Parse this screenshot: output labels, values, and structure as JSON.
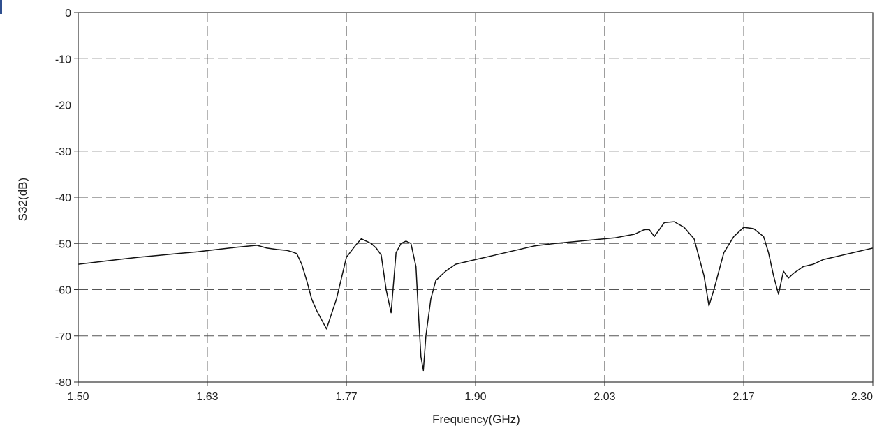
{
  "chart_data": {
    "type": "line",
    "title": "",
    "xlabel": "Frequency(GHz)",
    "ylabel": "S32(dB)",
    "xlim": [
      1.5,
      2.3
    ],
    "ylim": [
      -80,
      0
    ],
    "x_ticks": [
      1.5,
      1.63,
      1.77,
      1.9,
      2.03,
      2.17,
      2.3
    ],
    "x_tick_labels": [
      "1.50",
      "1.63",
      "1.77",
      "1.90",
      "2.03",
      "2.17",
      "2.30"
    ],
    "y_ticks": [
      0,
      -10,
      -20,
      -30,
      -40,
      -50,
      -60,
      -70,
      -80
    ],
    "y_tick_labels": [
      "0",
      "-10",
      "-20",
      "-30",
      "-40",
      "-50",
      "-60",
      "-70",
      "-80"
    ],
    "grid": true,
    "grid_style": "dashed",
    "line_color": "#111111",
    "series": [
      {
        "x": [
          1.5,
          1.52,
          1.54,
          1.56,
          1.58,
          1.6,
          1.62,
          1.64,
          1.66,
          1.67,
          1.68,
          1.69,
          1.7,
          1.71,
          1.715,
          1.72,
          1.725,
          1.73,
          1.735,
          1.74,
          1.75,
          1.76,
          1.77,
          1.78,
          1.785,
          1.79,
          1.795,
          1.8,
          1.805,
          1.81,
          1.815,
          1.82,
          1.825,
          1.83,
          1.835,
          1.84,
          1.8425,
          1.845,
          1.8475,
          1.85,
          1.855,
          1.86,
          1.87,
          1.88,
          1.9,
          1.92,
          1.94,
          1.96,
          1.98,
          2.0,
          2.02,
          2.04,
          2.06,
          2.065,
          2.07,
          2.075,
          2.08,
          2.085,
          2.09,
          2.1,
          2.11,
          2.12,
          2.125,
          2.13,
          2.135,
          2.14,
          2.15,
          2.16,
          2.17,
          2.18,
          2.19,
          2.195,
          2.2,
          2.205,
          2.21,
          2.215,
          2.22,
          2.23,
          2.24,
          2.25,
          2.26,
          2.27,
          2.28,
          2.29,
          2.3
        ],
        "y": [
          -54.5,
          -54.0,
          -53.5,
          -53.0,
          -52.6,
          -52.2,
          -51.8,
          -51.3,
          -50.8,
          -50.6,
          -50.4,
          -51.0,
          -51.3,
          -51.5,
          -51.8,
          -52.2,
          -54.5,
          -58.0,
          -62.0,
          -64.5,
          -68.5,
          -62.0,
          -53.0,
          -50.2,
          -49.0,
          -49.5,
          -50.0,
          -51.0,
          -52.5,
          -60.0,
          -65.0,
          -52.0,
          -50.0,
          -49.5,
          -50.0,
          -55.0,
          -65.0,
          -74.5,
          -77.5,
          -70.0,
          -62.0,
          -58.0,
          -56.0,
          -54.5,
          -53.5,
          -52.5,
          -51.5,
          -50.5,
          -50.0,
          -49.6,
          -49.2,
          -48.8,
          -48.0,
          -47.5,
          -47.0,
          -47.0,
          -48.5,
          -47.0,
          -45.5,
          -45.3,
          -46.5,
          -49.0,
          -53.0,
          -57.0,
          -63.5,
          -60.0,
          -52.0,
          -48.5,
          -46.5,
          -46.8,
          -48.5,
          -52.0,
          -57.0,
          -61.0,
          -56.0,
          -57.5,
          -56.5,
          -55.0,
          -54.5,
          -53.5,
          -53.0,
          -52.5,
          -52.0,
          -51.5,
          -51.0
        ]
      }
    ]
  }
}
